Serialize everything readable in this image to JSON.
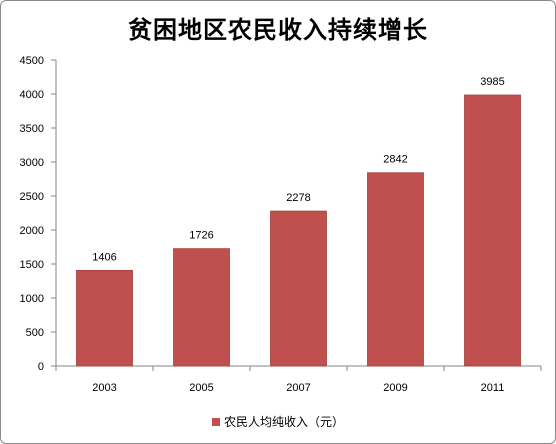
{
  "chart_data": {
    "type": "bar",
    "title": "贫困地区农民收入持续增长",
    "categories": [
      "2003",
      "2005",
      "2007",
      "2009",
      "2011"
    ],
    "series": [
      {
        "name": "农民人均纯收入（元）",
        "values": [
          1406,
          1726,
          2278,
          2842,
          3985
        ],
        "color": "#c0504d"
      }
    ],
    "ylim": [
      0,
      4500
    ],
    "yticks": [
      "0",
      "500",
      "1000",
      "1500",
      "2000",
      "2500",
      "3000",
      "3500",
      "4000",
      "4500"
    ],
    "grid": false,
    "legend_position": "bottom"
  }
}
